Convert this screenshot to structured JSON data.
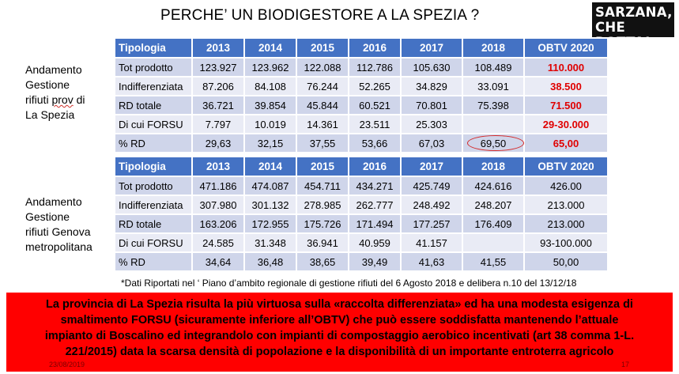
{
  "title": "PERCHE’ UN BIODIGESTORE A LA SPEZIA ?",
  "logo": {
    "line1": "SARZANA,",
    "line2": "CHE BOTTA!"
  },
  "section1_label": {
    "l1": "Andamento",
    "l2": "Gestione",
    "l3a": "rifiuti ",
    "l3b": "prov",
    "l3c": " di",
    "l4": "La Spezia"
  },
  "section2_label": {
    "l1": "Andamento",
    "l2": "Gestione",
    "l3": "rifiuti Genova",
    "l4": "metropolitana"
  },
  "table1": {
    "headers": [
      "Tipologia",
      "2013",
      "2014",
      "2015",
      "2016",
      "2017",
      "2018",
      "OBTV 2020"
    ],
    "rows": [
      [
        "Tot prodotto",
        "123.927",
        "123.962",
        "122.088",
        "112.786",
        "105.630",
        "108.489",
        "110.000"
      ],
      [
        "Indifferenziata",
        "87.206",
        "84.108",
        "76.244",
        "52.265",
        "34.829",
        "33.091",
        "38.500"
      ],
      [
        "RD totale",
        "36.721",
        "39.854",
        "45.844",
        "60.521",
        "70.801",
        "75.398",
        "71.500"
      ],
      [
        "Di cui FORSU",
        "7.797",
        "10.019",
        "14.361",
        "23.511",
        "25.303",
        "",
        "29-30.000"
      ],
      [
        "% RD",
        "29,63",
        "32,15",
        "37,55",
        "53,66",
        "67,03",
        "69,50",
        "65,00"
      ]
    ]
  },
  "table2": {
    "headers": [
      "Tipologia",
      "2013",
      "2014",
      "2015",
      "2016",
      "2017",
      "2018",
      "OBTV 2020"
    ],
    "rows": [
      [
        "Tot  prodotto",
        "471.186",
        "474.087",
        "454.711",
        "434.271",
        "425.749",
        "424.616",
        "426.00"
      ],
      [
        "Indifferenziata",
        "307.980",
        "301.132",
        "278.985",
        "262.777",
        "248.492",
        "248.207",
        "213.000"
      ],
      [
        "RD totale",
        "163.206",
        "172.955",
        "175.726",
        "171.494",
        "177.257",
        "176.409",
        "213.000"
      ],
      [
        "Di cui FORSU",
        "24.585",
        "31.348",
        "36.941",
        "40.959",
        "41.157",
        "",
        "93-100.000"
      ],
      [
        "% RD",
        "34,64",
        "36,48",
        "38,65",
        "39,49",
        "41,63",
        "41,55",
        "50,00"
      ]
    ]
  },
  "note": "*Dati Riportati nel ‘ Piano d’ambito regionale di gestione rifiuti del 6 Agosto 2018 e delibera n.10 del 13/12/18",
  "banner": {
    "line1": "La provincia di La Spezia risulta la più virtuosa sulla «raccolta differenziata» ed ha una modesta esigenza di",
    "line2": "smaltimento FORSU (sicuramente inferiore all’OBTV) che può essere soddisfatta mantenendo l’attuale",
    "line3": "impianto di Boscalino ed integrandolo con impianti di compostaggio aerobico incentivati (art 38 comma 1-L.",
    "line4": "221/2015) data la scarsa densità di popolazione e la disponibilità di un importante entroterra agricolo"
  },
  "footer": {
    "date": "23/08/2019",
    "page": "17"
  },
  "colors": {
    "header": "#4472c4",
    "row_dark": "#cfd5ea",
    "row_light": "#e9ebf5",
    "highlight": "#e00000",
    "banner": "#ff0000"
  }
}
